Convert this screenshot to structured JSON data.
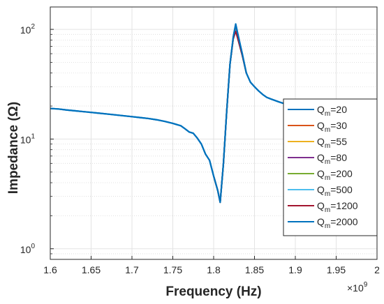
{
  "chart_data": {
    "type": "line",
    "title": "",
    "xlabel": "Frequency (Hz)",
    "ylabel": "Impedance (Ω)",
    "x_exponent_label": "×10",
    "x_exponent_power": "9",
    "x_multiplier": 1000000000,
    "xlim": [
      1.6,
      2.0
    ],
    "ylim": [
      0.8,
      160
    ],
    "yscale": "log",
    "grid": true,
    "minor_grid": true,
    "legend_position": "right",
    "x_ticks": [
      {
        "value": 1.6,
        "label": "1.6"
      },
      {
        "value": 1.65,
        "label": "1.65"
      },
      {
        "value": 1.7,
        "label": "1.7"
      },
      {
        "value": 1.75,
        "label": "1.75"
      },
      {
        "value": 1.8,
        "label": "1.8"
      },
      {
        "value": 1.85,
        "label": "1.85"
      },
      {
        "value": 1.9,
        "label": "1.9"
      },
      {
        "value": 1.95,
        "label": "1.95"
      },
      {
        "value": 2.0,
        "label": "2"
      }
    ],
    "y_ticks": [
      {
        "value": 1,
        "base": "10",
        "exp": "0"
      },
      {
        "value": 10,
        "base": "10",
        "exp": "1"
      },
      {
        "value": 100,
        "base": "10",
        "exp": "2"
      }
    ],
    "series": [
      {
        "name": "Q",
        "sub": "m",
        "suffix": "=20",
        "color": "#0072BD",
        "width": 2.2,
        "x": [
          1.6,
          1.61,
          1.62,
          1.63,
          1.64,
          1.65,
          1.66,
          1.67,
          1.68,
          1.69,
          1.7,
          1.71,
          1.72,
          1.73,
          1.74,
          1.75,
          1.76,
          1.765,
          1.77,
          1.775,
          1.78,
          1.785,
          1.79,
          1.795,
          1.8,
          1.805,
          1.808,
          1.812,
          1.816,
          1.82,
          1.824,
          1.827,
          1.83,
          1.835,
          1.84,
          1.845,
          1.85,
          1.855,
          1.86,
          1.865,
          1.87,
          1.875,
          1.88,
          1.885,
          1.89,
          1.9,
          1.91,
          1.92,
          1.93,
          1.94,
          1.95,
          1.96,
          1.97,
          1.98,
          1.99,
          2.0
        ],
        "y": [
          19,
          18.8,
          18.4,
          18.1,
          17.8,
          17.5,
          17.2,
          16.9,
          16.6,
          16.3,
          16,
          15.7,
          15.4,
          15,
          14.5,
          13.9,
          13.2,
          12.4,
          11.6,
          11.3,
          10.2,
          9.0,
          7.3,
          6.4,
          4.6,
          3.4,
          2.65,
          6,
          18,
          48,
          85,
          112,
          88,
          60,
          40,
          33,
          30,
          27.5,
          25.5,
          24,
          23.2,
          22.5,
          21.8,
          21.2,
          20.6,
          19.8,
          19.1,
          18.6,
          18.2,
          17.9,
          17.6,
          17.4,
          17.3,
          17.2,
          17.1,
          17.0
        ]
      },
      {
        "name": "Q",
        "sub": "m",
        "suffix": "=30",
        "color": "#D95319",
        "width": 2,
        "x": [
          1.8,
          1.805,
          1.808,
          1.812,
          1.816,
          1.82,
          1.824,
          1.827,
          1.83,
          1.835,
          1.84
        ],
        "y": [
          4.6,
          3.4,
          2.65,
          6,
          18,
          48,
          82,
          100,
          82,
          58,
          40
        ]
      },
      {
        "name": "Q",
        "sub": "m",
        "suffix": "=55",
        "color": "#EDB120",
        "width": 2,
        "x": [
          1.8,
          1.805,
          1.808,
          1.812,
          1.816,
          1.82,
          1.824,
          1.827,
          1.83,
          1.835,
          1.84
        ],
        "y": [
          4.6,
          3.4,
          2.65,
          6,
          18,
          48,
          82,
          99,
          81,
          58,
          40
        ]
      },
      {
        "name": "Q",
        "sub": "m",
        "suffix": "=80",
        "color": "#7E2F8E",
        "width": 2,
        "x": [
          1.8,
          1.805,
          1.808,
          1.812,
          1.816,
          1.82,
          1.824,
          1.827,
          1.83,
          1.835,
          1.84
        ],
        "y": [
          4.6,
          3.4,
          2.65,
          6,
          18,
          48,
          82,
          98,
          80,
          58,
          40
        ]
      },
      {
        "name": "Q",
        "sub": "m",
        "suffix": "=200",
        "color": "#77AC30",
        "width": 2,
        "x": [
          1.8,
          1.805,
          1.808,
          1.812,
          1.816,
          1.82,
          1.824,
          1.827,
          1.83,
          1.835,
          1.84
        ],
        "y": [
          4.6,
          3.4,
          2.65,
          6,
          18,
          48,
          82,
          97,
          80,
          58,
          40
        ]
      },
      {
        "name": "Q",
        "sub": "m",
        "suffix": "=500",
        "color": "#4DBEEE",
        "width": 2,
        "x": [
          1.8,
          1.805,
          1.808,
          1.812,
          1.816,
          1.82,
          1.824,
          1.827,
          1.83,
          1.835,
          1.84
        ],
        "y": [
          4.6,
          3.4,
          2.65,
          6,
          18,
          48,
          82,
          97,
          80,
          58,
          40
        ]
      },
      {
        "name": "Q",
        "sub": "m",
        "suffix": "=1200",
        "color": "#A2142F",
        "width": 2,
        "x": [
          1.8,
          1.805,
          1.808,
          1.812,
          1.816,
          1.82,
          1.824,
          1.827,
          1.83,
          1.835,
          1.84
        ],
        "y": [
          4.6,
          3.4,
          2.65,
          6,
          18,
          48,
          82,
          96,
          80,
          58,
          40
        ]
      },
      {
        "name": "Q",
        "sub": "m",
        "suffix": "=2000",
        "color": "#0072BD",
        "width": 2.2,
        "x": [
          1.6,
          1.61,
          1.62,
          1.63,
          1.64,
          1.65,
          1.66,
          1.67,
          1.68,
          1.69,
          1.7,
          1.71,
          1.72,
          1.73,
          1.74,
          1.75,
          1.76,
          1.765,
          1.77,
          1.775,
          1.78,
          1.785,
          1.79,
          1.795,
          1.8,
          1.805,
          1.808,
          1.812,
          1.816,
          1.82,
          1.824,
          1.827,
          1.83,
          1.835,
          1.84,
          1.845,
          1.85,
          1.855,
          1.86,
          1.865,
          1.87,
          1.875,
          1.88,
          1.885,
          1.89,
          1.9,
          1.91,
          1.92,
          1.93,
          1.94,
          1.95,
          1.96,
          1.97,
          1.98,
          1.99,
          2.0
        ],
        "y": [
          19,
          18.8,
          18.4,
          18.1,
          17.8,
          17.5,
          17.2,
          16.9,
          16.6,
          16.3,
          16,
          15.7,
          15.4,
          15,
          14.5,
          13.9,
          13.2,
          12.4,
          11.6,
          11.3,
          10.2,
          9.0,
          7.3,
          6.4,
          4.6,
          3.4,
          2.65,
          6,
          18,
          48,
          85,
          110,
          88,
          60,
          40,
          33,
          30,
          27.5,
          25.5,
          24,
          23.2,
          22.5,
          21.8,
          21.2,
          20.6,
          19.8,
          19.1,
          18.6,
          18.2,
          17.9,
          17.6,
          17.4,
          17.3,
          17.2,
          17.1,
          17.0
        ]
      }
    ]
  }
}
